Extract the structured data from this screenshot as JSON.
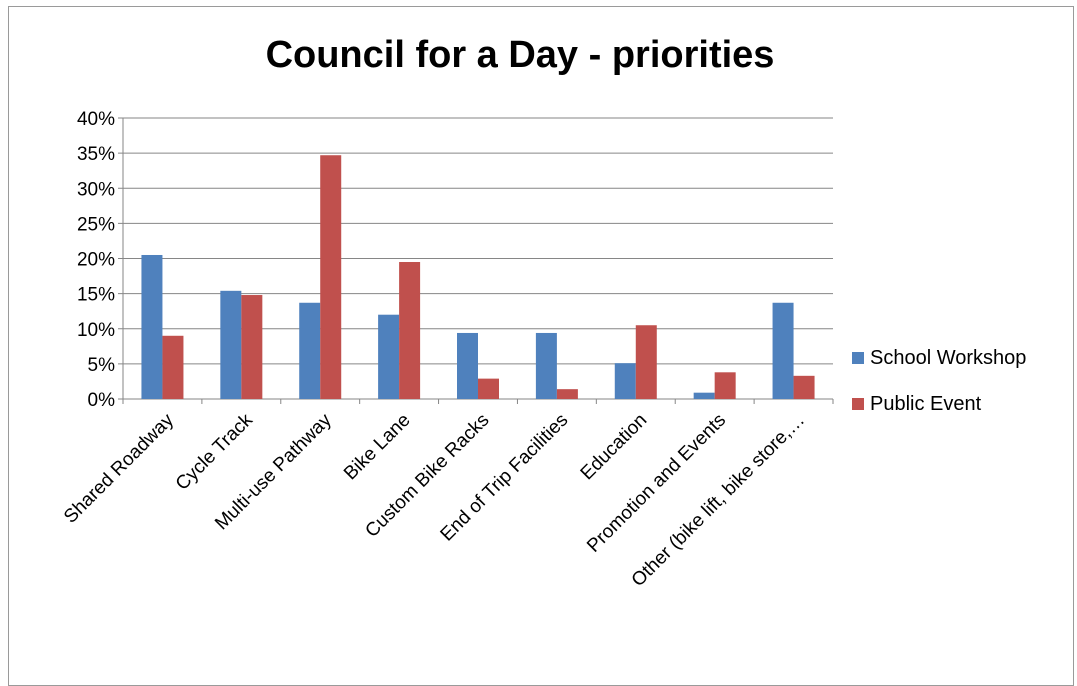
{
  "chart_data": {
    "type": "bar",
    "title": "Council for a Day - priorities",
    "categories": [
      "Shared Roadway",
      "Cycle Track",
      "Multi-use Pathway",
      "Bike Lane",
      "Custom Bike Racks",
      "End of Trip Facilities",
      "Education",
      "Promotion and Events",
      "Other (bike lift, bike store,…"
    ],
    "series": [
      {
        "name": "School Workshop",
        "color": "#4f81bd",
        "values": [
          20.5,
          15.4,
          13.7,
          12.0,
          9.4,
          9.4,
          5.1,
          0.9,
          13.7
        ]
      },
      {
        "name": "Public Event",
        "color": "#c0504d",
        "values": [
          9.0,
          14.8,
          34.7,
          19.5,
          2.9,
          1.4,
          10.5,
          3.8,
          3.3
        ]
      }
    ],
    "ylim": [
      0,
      40
    ],
    "yticks": [
      "0%",
      "5%",
      "10%",
      "15%",
      "20%",
      "25%",
      "30%",
      "35%",
      "40%"
    ],
    "ytick_values": [
      0,
      5,
      10,
      15,
      20,
      25,
      30,
      35,
      40
    ],
    "grid": true,
    "legend_position": "right"
  }
}
